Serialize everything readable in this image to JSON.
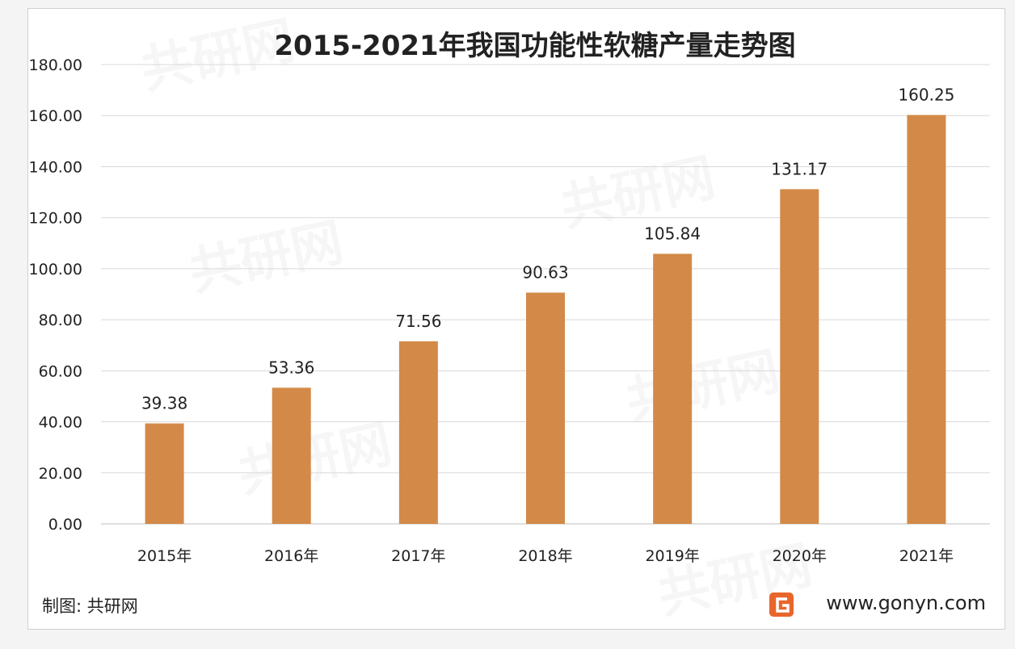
{
  "chart_data": {
    "type": "bar",
    "title": "2015-2021年我国功能性软糖产量走势图",
    "xlabel": "",
    "ylabel": "",
    "categories": [
      "2015年",
      "2016年",
      "2017年",
      "2018年",
      "2019年",
      "2020年",
      "2021年"
    ],
    "values": [
      39.38,
      53.36,
      71.56,
      90.63,
      105.84,
      131.17,
      160.25
    ],
    "value_labels": [
      "39.38",
      "53.36",
      "71.56",
      "90.63",
      "105.84",
      "131.17",
      "160.25"
    ],
    "ylim": [
      0,
      180
    ],
    "yticks": [
      "0.00",
      "20.00",
      "40.00",
      "60.00",
      "80.00",
      "100.00",
      "120.00",
      "140.00",
      "160.00",
      "180.00"
    ],
    "grid": true,
    "legend": "none",
    "bar_color": "#d38a48"
  },
  "footer": {
    "credit": "制图: 共研网",
    "website": "www.gonyn.com",
    "logo_color": "#e8662b"
  },
  "watermark": {
    "brand": "共研网",
    "url": "www.gonyn.com"
  }
}
